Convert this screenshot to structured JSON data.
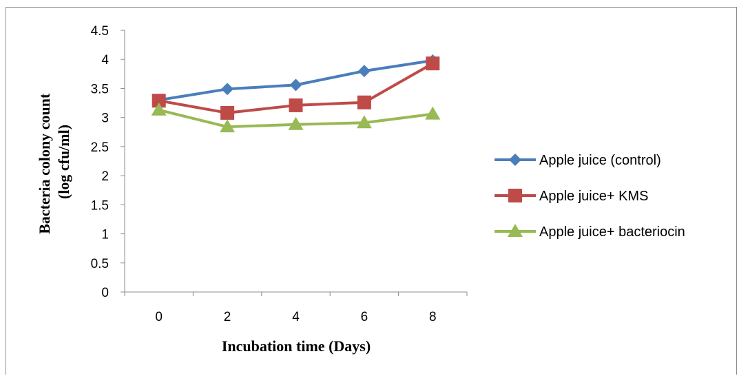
{
  "chart_data": {
    "type": "line",
    "xlabel": "Incubation time (Days)",
    "ylabel_lines": [
      "Bacteria colony count",
      "(log cfu/ml)"
    ],
    "x": [
      0,
      2,
      4,
      6,
      8
    ],
    "x_tick_labels": [
      "0",
      "2",
      "4",
      "6",
      "8"
    ],
    "ylim": [
      0,
      4.5
    ],
    "y_ticks": [
      0,
      0.5,
      1,
      1.5,
      2,
      2.5,
      3,
      3.5,
      4,
      4.5
    ],
    "y_tick_labels": [
      "0",
      "0.5",
      "1",
      "1.5",
      "2",
      "2.5",
      "3",
      "3.5",
      "4",
      "4.5"
    ],
    "legend_position": "right",
    "grid": false,
    "series": [
      {
        "name": "Apple juice (control)",
        "values": [
          3.3,
          3.49,
          3.56,
          3.8,
          3.98
        ],
        "color": "#4a7ebb",
        "marker": "diamond"
      },
      {
        "name": "Apple juice+ KMS",
        "values": [
          3.29,
          3.08,
          3.21,
          3.26,
          3.93
        ],
        "color": "#be4b48",
        "marker": "square"
      },
      {
        "name": "Apple juice+ bacteriocin",
        "values": [
          3.13,
          2.84,
          2.88,
          2.91,
          3.06
        ],
        "color": "#98b954",
        "marker": "triangle"
      }
    ]
  }
}
